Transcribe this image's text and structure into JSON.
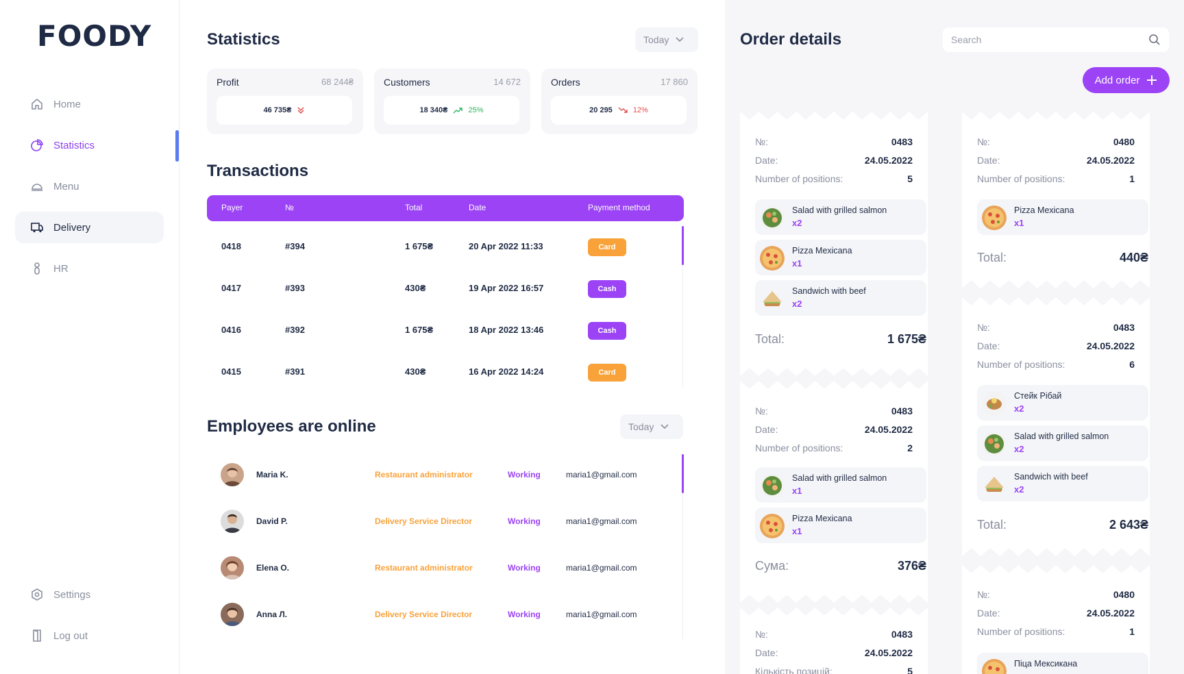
{
  "app": {
    "logo": "FOODY"
  },
  "sidebar": {
    "items": [
      {
        "label": "Home",
        "icon": "home-icon"
      },
      {
        "label": "Statistics",
        "icon": "pie-chart-icon"
      },
      {
        "label": "Menu",
        "icon": "cloche-icon"
      },
      {
        "label": "Delivery",
        "icon": "truck-icon"
      },
      {
        "label": "HR",
        "icon": "person-icon"
      }
    ],
    "bottom": [
      {
        "label": "Settings",
        "icon": "gear-icon"
      },
      {
        "label": "Log out",
        "icon": "logout-icon"
      }
    ]
  },
  "statistics": {
    "title": "Statistics",
    "period": "Today",
    "cards": [
      {
        "label": "Profit",
        "total": "68 244₴",
        "value": "46 735₴",
        "change": "",
        "trend": "down"
      },
      {
        "label": "Customers",
        "total": "14 672",
        "value": "18 340₴",
        "change": "25%",
        "trend": "up"
      },
      {
        "label": "Orders",
        "total": "17 860",
        "value": "20 295",
        "change": "12%",
        "trend": "down"
      }
    ]
  },
  "transactions": {
    "title": "Transactions",
    "columns": [
      "Payer",
      "№",
      "Total",
      "Date",
      "Payment method"
    ],
    "rows": [
      {
        "payer": "0418",
        "num": "#394",
        "total": "1 675₴",
        "date": "20 Apr 2022 11:33",
        "method": "Card"
      },
      {
        "payer": "0417",
        "num": "#393",
        "total": "430₴",
        "date": "19 Apr 2022 16:57",
        "method": "Cash"
      },
      {
        "payer": "0416",
        "num": "#392",
        "total": "1 675₴",
        "date": "18 Apr 2022 13:46",
        "method": "Cash"
      },
      {
        "payer": "0415",
        "num": "#391",
        "total": "430₴",
        "date": "16 Apr 2022 14:24",
        "method": "Card"
      }
    ]
  },
  "employees": {
    "title": "Employees are online",
    "period": "Today",
    "rows": [
      {
        "name": "Maria K.",
        "role": "Restaurant administrator",
        "status": "Working",
        "email": "maria1@gmail.com"
      },
      {
        "name": "David P.",
        "role": "Delivery Service Director",
        "status": "Working",
        "email": "maria1@gmail.com"
      },
      {
        "name": "Elena O.",
        "role": "Restaurant administrator",
        "status": "Working",
        "email": "maria1@gmail.com"
      },
      {
        "name": "Anna Л.",
        "role": "Delivery Service Director",
        "status": "Working",
        "email": "maria1@gmail.com"
      }
    ]
  },
  "orders": {
    "title": "Order details",
    "search_placeholder": "Search",
    "add_label": "Add order",
    "tickets": [
      {
        "no_label": "№:",
        "no": "0483",
        "date_label": "Date:",
        "date": "24.05.2022",
        "pos_label": "Number of positions:",
        "positions": "5",
        "items": [
          {
            "name": "Salad with grilled salmon",
            "qty": "x2"
          },
          {
            "name": "Pizza Mexicana",
            "qty": "x1"
          },
          {
            "name": "Sandwich with beef",
            "qty": "x2"
          }
        ],
        "total_label": "Total:",
        "total": "1 675₴"
      },
      {
        "no_label": "№:",
        "no": "0483",
        "date_label": "Date:",
        "date": "24.05.2022",
        "pos_label": "Number of positions:",
        "positions": "2",
        "items": [
          {
            "name": "Salad with grilled salmon",
            "qty": "x1"
          },
          {
            "name": "Pizza Mexicana",
            "qty": "x1"
          }
        ],
        "total_label": "Сума:",
        "total": "376₴"
      },
      {
        "no_label": "№:",
        "no": "0483",
        "date_label": "Date:",
        "date": "24.05.2022",
        "pos_label": "Кількість позицій:",
        "positions": "5",
        "items": [],
        "total_label": "",
        "total": ""
      },
      {
        "no_label": "№:",
        "no": "0480",
        "date_label": "Date:",
        "date": "24.05.2022",
        "pos_label": "Number of positions:",
        "positions": "1",
        "items": [
          {
            "name": "Pizza Mexicana",
            "qty": "x1"
          }
        ],
        "total_label": "Total:",
        "total": "440₴"
      },
      {
        "no_label": "№:",
        "no": "0483",
        "date_label": "Date:",
        "date": "24.05.2022",
        "pos_label": "Number of positions:",
        "positions": "6",
        "items": [
          {
            "name": "Стейк Рібай",
            "qty": "x2"
          },
          {
            "name": "Salad with grilled salmon",
            "qty": "x2"
          },
          {
            "name": "Sandwich with beef",
            "qty": "x2"
          }
        ],
        "total_label": "Total:",
        "total": "2 643₴"
      },
      {
        "no_label": "№:",
        "no": "0480",
        "date_label": "Date:",
        "date": "24.05.2022",
        "pos_label": "Number of positions:",
        "positions": "1",
        "items": [
          {
            "name": "Піца Мексикана",
            "qty": ""
          }
        ],
        "total_label": "",
        "total": ""
      }
    ]
  },
  "colors": {
    "accent": "#9b43f5",
    "orange": "#f9a23a",
    "navy": "#1f2a44",
    "blue": "#5b7cf0"
  }
}
